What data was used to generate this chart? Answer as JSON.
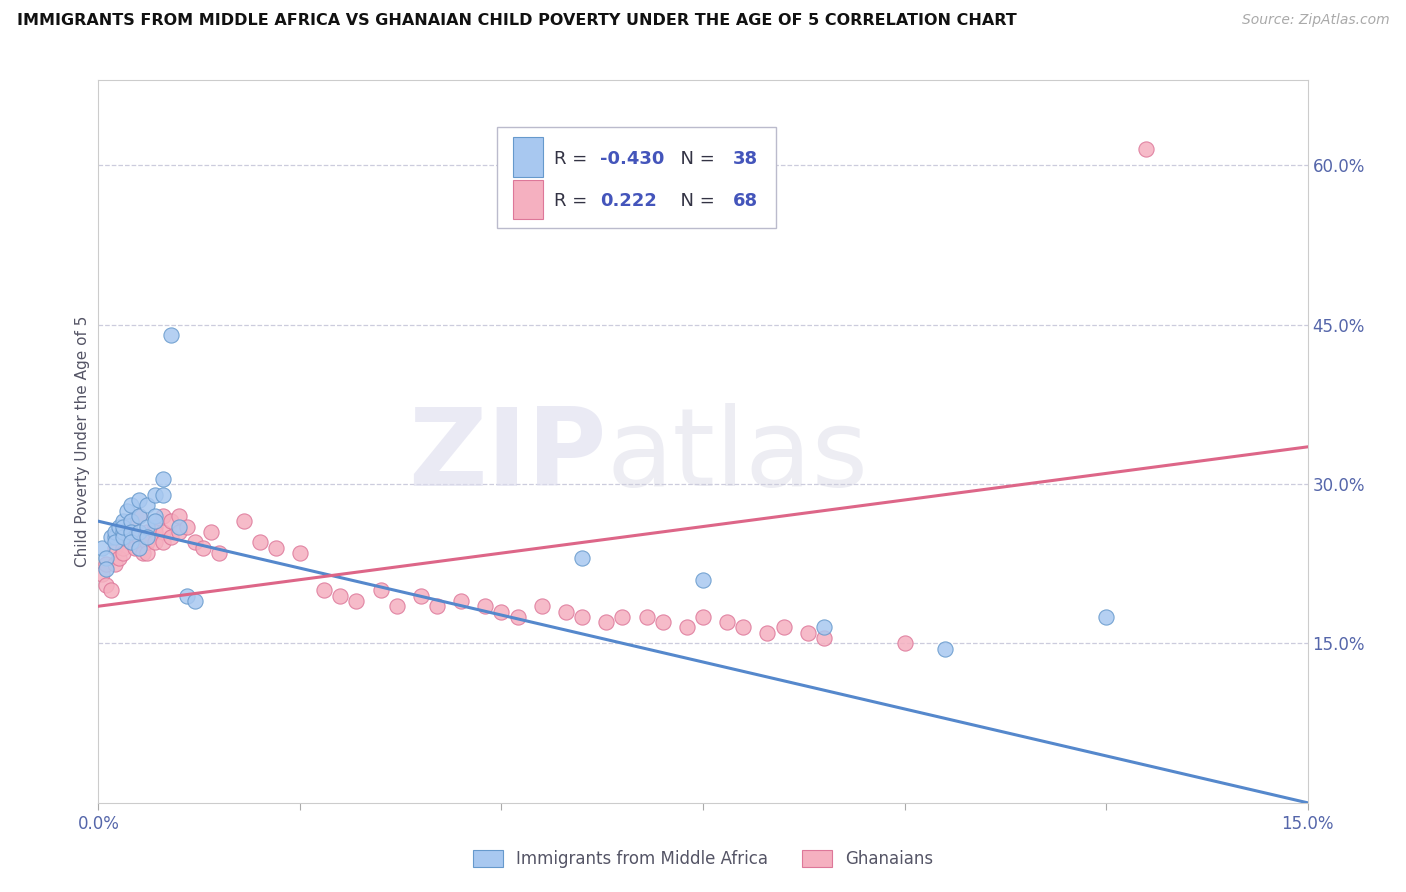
{
  "title": "IMMIGRANTS FROM MIDDLE AFRICA VS GHANAIAN CHILD POVERTY UNDER THE AGE OF 5 CORRELATION CHART",
  "source": "Source: ZipAtlas.com",
  "ylabel": "Child Poverty Under the Age of 5",
  "xlim": [
    0.0,
    0.15
  ],
  "ylim": [
    0.0,
    0.68
  ],
  "xtick_positions": [
    0.0,
    0.025,
    0.05,
    0.075,
    0.1,
    0.125,
    0.15
  ],
  "xtick_labels": [
    "0.0%",
    "",
    "",
    "",
    "",
    "",
    "15.0%"
  ],
  "right_ytick_positions": [
    0.15,
    0.3,
    0.45,
    0.6
  ],
  "right_ytick_labels": [
    "15.0%",
    "30.0%",
    "45.0%",
    "60.0%"
  ],
  "blue_R": "-0.430",
  "blue_N": "38",
  "pink_R": "0.222",
  "pink_N": "68",
  "blue_dot_color": "#a8c8f0",
  "blue_edge_color": "#6699cc",
  "pink_dot_color": "#f5b0c0",
  "pink_edge_color": "#dd7799",
  "blue_line_color": "#5588cc",
  "pink_line_color": "#dd6688",
  "legend_label_blue": "Immigrants from Middle Africa",
  "legend_label_pink": "Ghanaians",
  "blue_regline_x": [
    0.0,
    0.15
  ],
  "blue_regline_y": [
    0.265,
    0.0
  ],
  "pink_regline_x": [
    0.0,
    0.15
  ],
  "pink_regline_y": [
    0.185,
    0.335
  ],
  "blue_scatter_x": [
    0.0005,
    0.001,
    0.001,
    0.0015,
    0.002,
    0.002,
    0.002,
    0.0025,
    0.003,
    0.003,
    0.003,
    0.003,
    0.0035,
    0.004,
    0.004,
    0.004,
    0.004,
    0.005,
    0.005,
    0.005,
    0.005,
    0.006,
    0.006,
    0.006,
    0.007,
    0.007,
    0.007,
    0.008,
    0.008,
    0.009,
    0.01,
    0.011,
    0.012,
    0.06,
    0.075,
    0.09,
    0.105,
    0.125
  ],
  "blue_scatter_y": [
    0.24,
    0.23,
    0.22,
    0.25,
    0.25,
    0.255,
    0.245,
    0.26,
    0.265,
    0.255,
    0.25,
    0.26,
    0.275,
    0.28,
    0.265,
    0.255,
    0.245,
    0.285,
    0.27,
    0.255,
    0.24,
    0.28,
    0.26,
    0.25,
    0.29,
    0.27,
    0.265,
    0.305,
    0.29,
    0.44,
    0.26,
    0.195,
    0.19,
    0.23,
    0.21,
    0.165,
    0.145,
    0.175
  ],
  "pink_scatter_x": [
    0.0005,
    0.001,
    0.001,
    0.0015,
    0.002,
    0.002,
    0.0025,
    0.003,
    0.003,
    0.003,
    0.004,
    0.004,
    0.004,
    0.0045,
    0.005,
    0.005,
    0.005,
    0.0055,
    0.006,
    0.006,
    0.006,
    0.007,
    0.007,
    0.007,
    0.008,
    0.008,
    0.008,
    0.009,
    0.009,
    0.01,
    0.01,
    0.011,
    0.012,
    0.013,
    0.014,
    0.015,
    0.018,
    0.02,
    0.022,
    0.025,
    0.028,
    0.03,
    0.032,
    0.035,
    0.037,
    0.04,
    0.042,
    0.045,
    0.048,
    0.05,
    0.052,
    0.055,
    0.058,
    0.06,
    0.063,
    0.065,
    0.068,
    0.07,
    0.073,
    0.075,
    0.078,
    0.08,
    0.083,
    0.085,
    0.088,
    0.09,
    0.1,
    0.13
  ],
  "pink_scatter_y": [
    0.215,
    0.225,
    0.205,
    0.2,
    0.24,
    0.225,
    0.23,
    0.255,
    0.24,
    0.235,
    0.265,
    0.25,
    0.245,
    0.24,
    0.27,
    0.25,
    0.24,
    0.235,
    0.255,
    0.245,
    0.235,
    0.26,
    0.255,
    0.245,
    0.27,
    0.255,
    0.245,
    0.265,
    0.25,
    0.27,
    0.255,
    0.26,
    0.245,
    0.24,
    0.255,
    0.235,
    0.265,
    0.245,
    0.24,
    0.235,
    0.2,
    0.195,
    0.19,
    0.2,
    0.185,
    0.195,
    0.185,
    0.19,
    0.185,
    0.18,
    0.175,
    0.185,
    0.18,
    0.175,
    0.17,
    0.175,
    0.175,
    0.17,
    0.165,
    0.175,
    0.17,
    0.165,
    0.16,
    0.165,
    0.16,
    0.155,
    0.15,
    0.615
  ],
  "figsize": [
    14.06,
    8.92
  ],
  "dpi": 100
}
